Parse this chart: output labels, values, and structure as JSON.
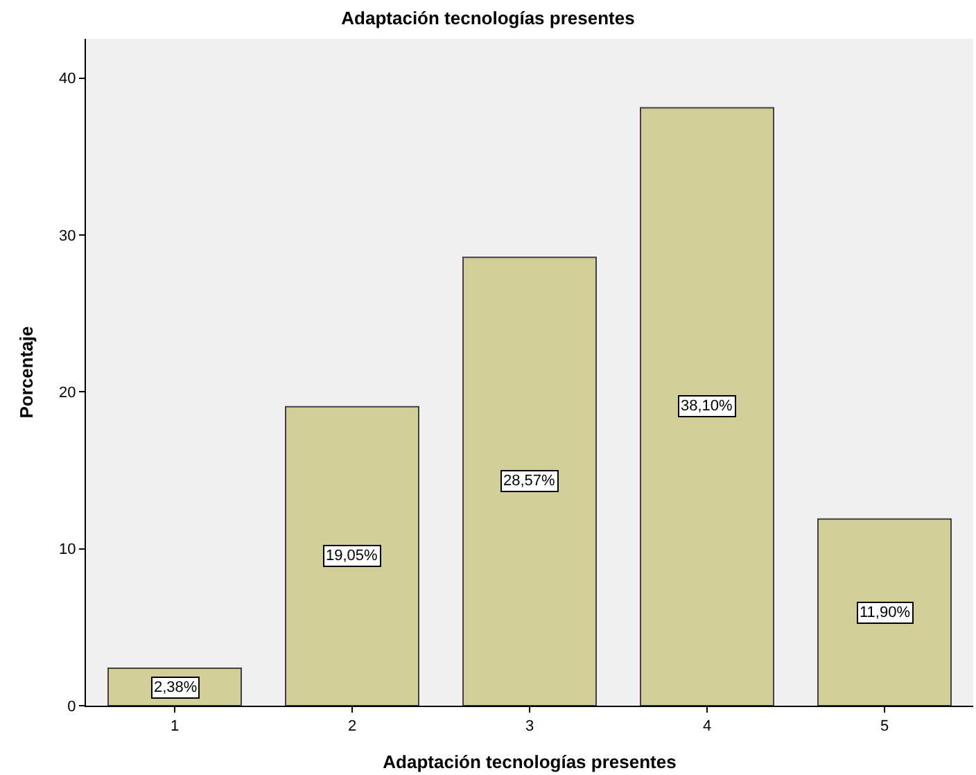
{
  "chart_data": {
    "type": "bar",
    "title": "Adaptación tecnologías presentes",
    "xlabel": "Adaptación tecnologías presentes",
    "ylabel": "Porcentaje",
    "categories": [
      "1",
      "2",
      "3",
      "4",
      "5"
    ],
    "values": [
      2.38,
      19.05,
      28.57,
      38.1,
      11.9
    ],
    "value_labels": [
      "2,38%",
      "19,05%",
      "28,57%",
      "38,10%",
      "11,90%"
    ],
    "color": "#d3ce97",
    "ylim": [
      0,
      42.5
    ],
    "yticks": [
      0,
      10,
      20,
      30,
      40
    ],
    "grid": false
  }
}
